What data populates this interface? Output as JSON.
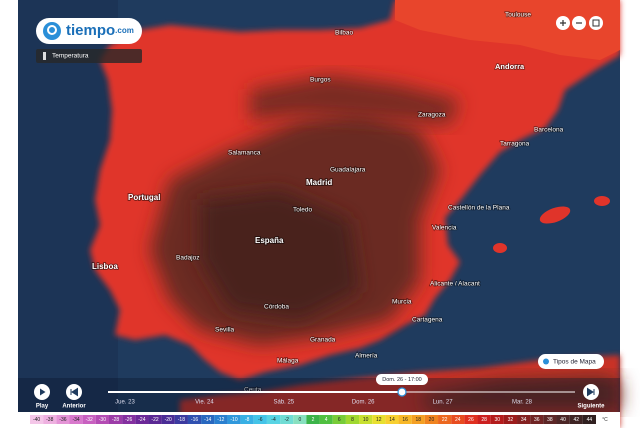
{
  "header": {
    "logo": "tiempo",
    "logo_suffix": ".com",
    "layer": "Temperatura"
  },
  "places": [
    "Toulouse",
    "Bilbao",
    "Burgos",
    "Andorra",
    "Zaragoza",
    "Barcelona",
    "Tarragona",
    "Salamanca",
    "Guadalajara",
    "Madrid",
    "Toledo",
    "Portugal",
    "España",
    "Castellón de la Plana",
    "Valencia",
    "Badajoz",
    "Lisboa",
    "Alicante / Alacant",
    "Murcia",
    "Cartagena",
    "Córdoba",
    "Sevilla",
    "Granada",
    "Almería",
    "Málaga",
    "Ceuta"
  ],
  "controls": {
    "play": "Play",
    "previous": "Anterior",
    "next": "Siguiente",
    "map_types": "Tipos de Mapa",
    "current_time": "Dom. 26 - 17:00",
    "days": [
      "Jue. 23",
      "Vie. 24",
      "Sáb. 25",
      "Dom. 26",
      "Lun. 27",
      "Mar. 28"
    ]
  },
  "scale": {
    "unit": "°C",
    "ticks": [
      -40,
      -38,
      -36,
      -34,
      -32,
      -30,
      -28,
      -26,
      -24,
      -22,
      -20,
      -18,
      -16,
      -14,
      -12,
      -10,
      -8,
      -6,
      -4,
      -2,
      0,
      2,
      4,
      6,
      8,
      10,
      12,
      14,
      16,
      18,
      20,
      22,
      24,
      26,
      28,
      30,
      32,
      34,
      36,
      38,
      40,
      42,
      44
    ],
    "colors": [
      "#f4c6e8",
      "#eeb0e0",
      "#e494d6",
      "#d878cc",
      "#c860c0",
      "#b44cb4",
      "#9c3ca8",
      "#8430a0",
      "#6c2898",
      "#5a2894",
      "#4a2c96",
      "#3c3aa0",
      "#3050b0",
      "#2868c0",
      "#2a80d0",
      "#3098dc",
      "#38b0e4",
      "#44c4e8",
      "#58d4e4",
      "#70dcd4",
      "#88e0c0",
      "#3cb44a",
      "#50c040",
      "#78cc38",
      "#a0d830",
      "#c8e030",
      "#e8e030",
      "#f8d030",
      "#f8b828",
      "#f4a024",
      "#f08420",
      "#ec6820",
      "#e84c20",
      "#e03020",
      "#cc2020",
      "#b41c1c",
      "#9c1c1c",
      "#842020",
      "#702424",
      "#5c2626",
      "#4c2626",
      "#3e2424",
      "#302020"
    ]
  }
}
